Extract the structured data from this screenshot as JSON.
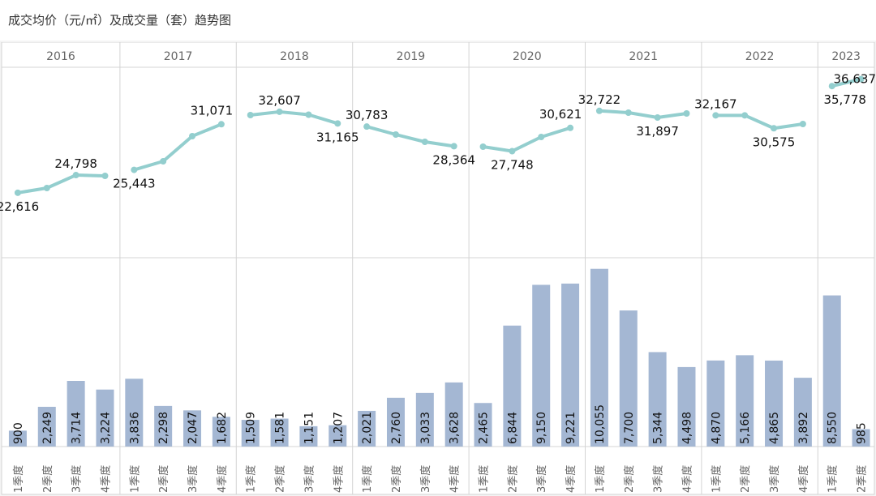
{
  "title": "成交均价（元/㎡）及成交量（套）趋势图",
  "colors": {
    "line": "#93cece",
    "bar": "#a4b7d3",
    "grid": "#d4d4d4",
    "text": "#111111",
    "axis_text": "#666666"
  },
  "chart_data": {
    "type": "bar+line",
    "title": "成交均价（元/㎡）及成交量（套）趋势图",
    "year_groups": [
      {
        "year": "2016",
        "quarters": [
          "1季度",
          "2季度",
          "3季度",
          "4季度"
        ]
      },
      {
        "year": "2017",
        "quarters": [
          "1季度",
          "2季度",
          "3季度",
          "4季度"
        ]
      },
      {
        "year": "2018",
        "quarters": [
          "1季度",
          "2季度",
          "3季度",
          "4季度"
        ]
      },
      {
        "year": "2019",
        "quarters": [
          "1季度",
          "2季度",
          "3季度",
          "4季度"
        ]
      },
      {
        "year": "2020",
        "quarters": [
          "1季度",
          "2季度",
          "3季度",
          "4季度"
        ]
      },
      {
        "year": "2021",
        "quarters": [
          "1季度",
          "2季度",
          "3季度",
          "4季度"
        ]
      },
      {
        "year": "2022",
        "quarters": [
          "1季度",
          "2季度",
          "3季度",
          "4季度"
        ]
      },
      {
        "year": "2023",
        "quarters": [
          "1季度",
          "2季度"
        ]
      }
    ],
    "series": [
      {
        "name": "成交均价（元/㎡）",
        "type": "line",
        "values": [
          22616,
          23200,
          24798,
          24700,
          25443,
          26500,
          29600,
          31071,
          32200,
          32607,
          32250,
          31165,
          30783,
          29800,
          28900,
          28364,
          28300,
          27748,
          29500,
          30621,
          32722,
          32500,
          31897,
          32400,
          32167,
          32167,
          30575,
          31100,
          35778,
          36637
        ],
        "labels": [
          "22,616",
          "",
          "24,798",
          "",
          "25,443",
          "",
          "",
          "31,071",
          "",
          "32,607",
          "",
          "31,165",
          "30,783",
          "",
          "",
          "28,364",
          "",
          "27,748",
          "",
          "30,621",
          "32,722",
          "",
          "31,897",
          "",
          "32,167",
          "",
          "30,575",
          "",
          "35,778",
          "36,637"
        ],
        "ylim": [
          15000,
          37000
        ]
      },
      {
        "name": "成交量（套）",
        "type": "bar",
        "values": [
          900,
          2249,
          3714,
          3224,
          3836,
          2298,
          2047,
          1682,
          1509,
          1581,
          1151,
          1207,
          2021,
          2760,
          3033,
          3628,
          2465,
          6844,
          9150,
          9221,
          10055,
          7700,
          5344,
          4498,
          4870,
          5166,
          4865,
          3892,
          8550,
          985
        ],
        "labels": [
          "900",
          "2,249",
          "3,714",
          "3,224",
          "3,836",
          "2,298",
          "2,047",
          "1,682",
          "1,509",
          "1,581",
          "1,151",
          "1,207",
          "2,021",
          "2,760",
          "3,033",
          "3,628",
          "2,465",
          "6,844",
          "9,150",
          "9,221",
          "10,055",
          "7,700",
          "5,344",
          "4,498",
          "4,870",
          "5,166",
          "4,865",
          "3,892",
          "8,550",
          "985"
        ],
        "ylim": [
          0,
          10500
        ]
      }
    ]
  }
}
